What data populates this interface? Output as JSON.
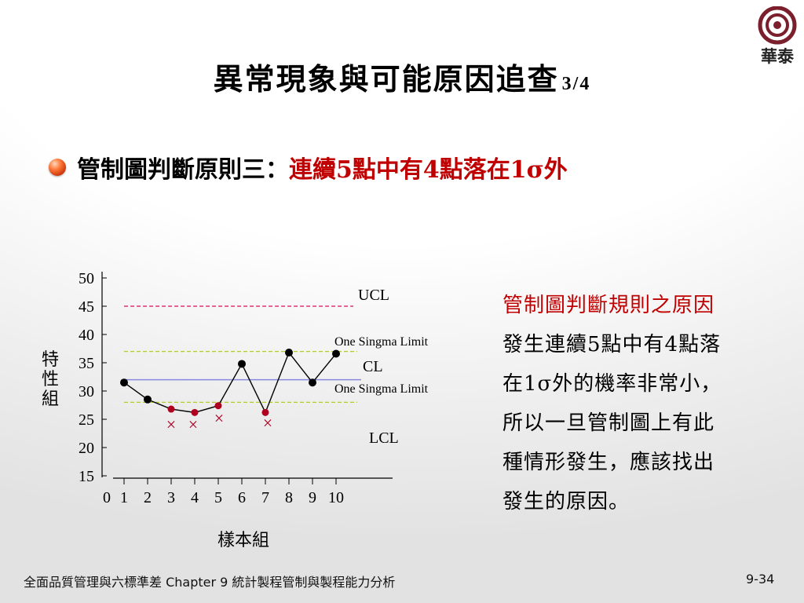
{
  "slide": {
    "title": "異常現象與可能原因追查",
    "title_suffix": "3/4",
    "logo_text": "華泰",
    "bullet": {
      "label": "管制圖判斷原則三：",
      "emphasis": "連續5點中有4點落在1σ外"
    },
    "side_text": {
      "heading": "管制圖判斷規則之原因",
      "body_lines": [
        "發生連續5點中有4點落",
        "在1σ外的機率非常小，",
        "所以一旦管制圖上有此",
        "種情形發生，應該找出",
        "發生的原因。"
      ]
    },
    "footer": {
      "left": "全面品質管理與六標準差 Chapter 9 統計製程管制與製程能力分析",
      "right": "9-34"
    }
  },
  "chart_data": {
    "type": "line",
    "x": [
      1,
      2,
      3,
      4,
      5,
      6,
      7,
      8,
      9,
      10
    ],
    "y": [
      31.5,
      28.5,
      26.8,
      26.2,
      27.4,
      34.8,
      26.2,
      36.8,
      31.5,
      36.6
    ],
    "flagged": [
      false,
      false,
      true,
      true,
      true,
      false,
      true,
      false,
      false,
      false
    ],
    "xlabel": "樣本組",
    "ylabel": "特性組",
    "ylim": [
      15,
      50
    ],
    "yticks": [
      50,
      45,
      40,
      35,
      30,
      25,
      20,
      15
    ],
    "xticks": [
      "0",
      "1",
      "2",
      "3",
      "4",
      "5",
      "6",
      "7",
      "8",
      "9",
      "10"
    ],
    "lines": {
      "UCL": 45,
      "upper_sigma": 37,
      "CL": 32,
      "lower_sigma": 28
    },
    "labels": {
      "UCL": "UCL",
      "CL": "CL",
      "LCL": "LCL",
      "sigma_upper": "One Singma Limit",
      "sigma_lower": "One Singma Limit"
    },
    "marker": "×",
    "colors": {
      "normal_point": "#000000",
      "flagged_point": "#b00020",
      "ucl_line": "#c8185a",
      "cl_line": "#8888dd",
      "sigma_line": "#b5c836",
      "cross": "#b00020"
    }
  }
}
